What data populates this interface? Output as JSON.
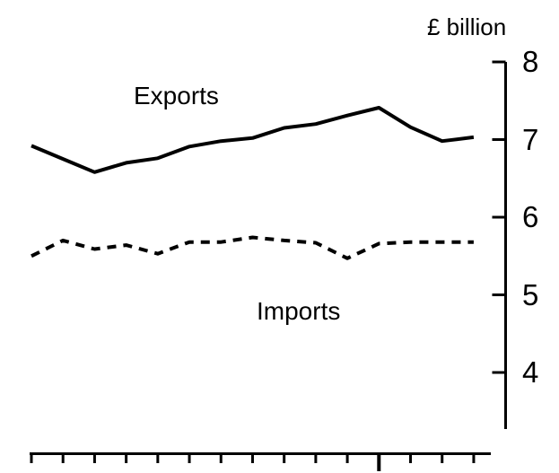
{
  "chart_data": {
    "type": "line",
    "title": "",
    "unit_label": "£ billion",
    "y_axis": {
      "side": "right",
      "ticks": [
        8,
        7,
        6,
        5,
        4
      ],
      "min": 4,
      "max": 8,
      "grid": false
    },
    "x_axis": {
      "tick_count": 15,
      "major_tick_index": 11,
      "labels": []
    },
    "legend": {
      "position": "inline-annotations",
      "entries": [
        "Exports",
        "Imports"
      ]
    },
    "series": [
      {
        "name": "Exports",
        "style": "solid",
        "values": [
          6.92,
          6.75,
          6.58,
          6.7,
          6.76,
          6.91,
          6.98,
          7.02,
          7.15,
          7.2,
          7.31,
          7.41,
          7.16,
          6.98,
          7.03
        ]
      },
      {
        "name": "Imports",
        "style": "dashed",
        "values": [
          5.5,
          5.7,
          5.59,
          5.64,
          5.53,
          5.68,
          5.68,
          5.74,
          5.7,
          5.67,
          5.47,
          5.66,
          5.68,
          5.68,
          5.68
        ]
      }
    ],
    "colors": {
      "line": "#000000",
      "background": "#ffffff",
      "text": "#000000"
    }
  }
}
